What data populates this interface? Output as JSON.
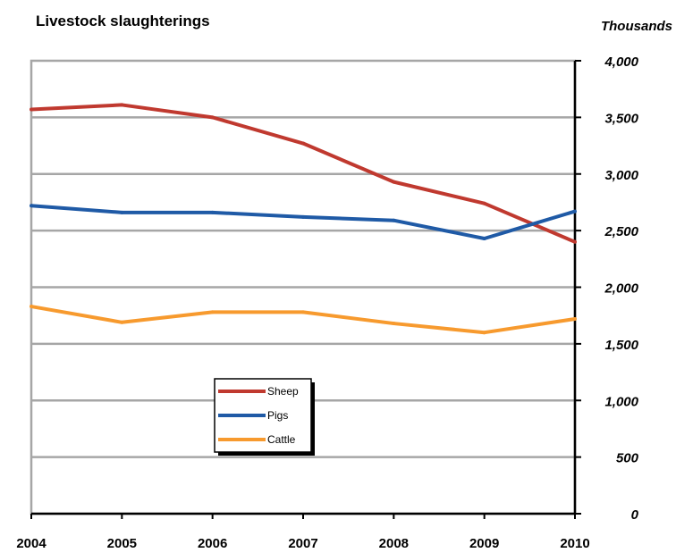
{
  "chart_data": {
    "type": "line",
    "title": "Livestock slaughterings",
    "ylabel": "Thousands",
    "xlabel": "",
    "categories": [
      "2004",
      "2005",
      "2006",
      "2007",
      "2008",
      "2009",
      "2010"
    ],
    "yticks": [
      "0",
      "500",
      "1,000",
      "1,500",
      "2,000",
      "2,500",
      "3,000",
      "3,500",
      "4,000"
    ],
    "ylim": [
      0,
      4000
    ],
    "grid": true,
    "legend_position": "center-left",
    "series": [
      {
        "name": "Sheep",
        "color": "#c0392f",
        "values": [
          3570,
          3610,
          3500,
          3270,
          2930,
          2740,
          2400
        ]
      },
      {
        "name": "Pigs",
        "color": "#1f5aa6",
        "values": [
          2720,
          2660,
          2660,
          2620,
          2590,
          2430,
          2670
        ]
      },
      {
        "name": "Cattle",
        "color": "#f79a2e",
        "values": [
          1830,
          1690,
          1780,
          1780,
          1680,
          1600,
          1720
        ]
      }
    ]
  }
}
